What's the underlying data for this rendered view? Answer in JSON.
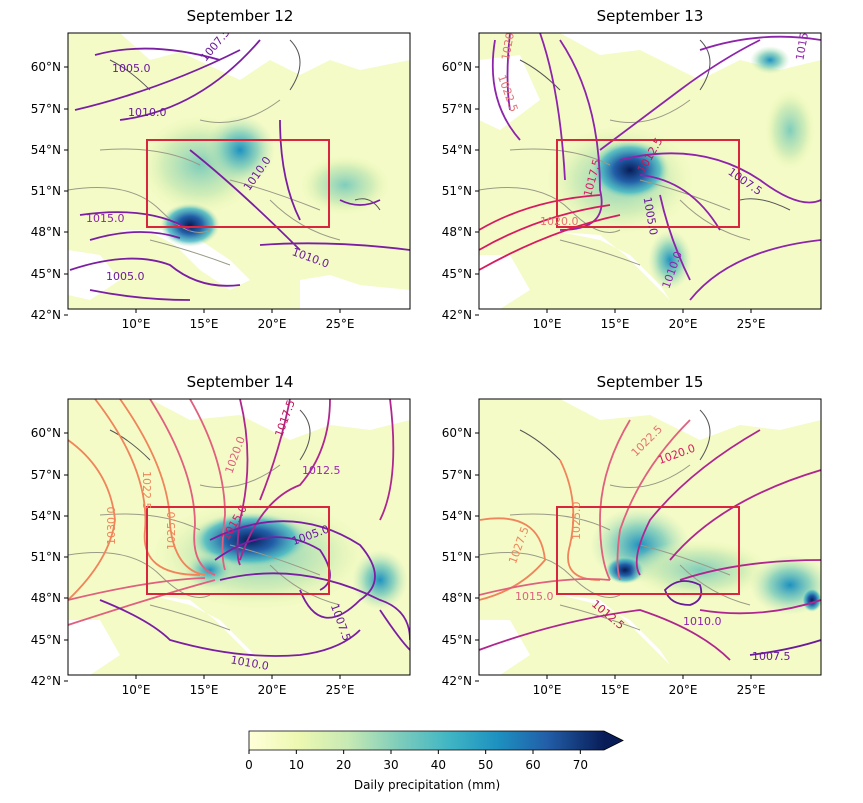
{
  "panels": [
    {
      "title": "September 12",
      "contour_labels": [
        "1005.0",
        "1007.5",
        "1010.0",
        "1010.0",
        "1015.0",
        "1010.0",
        "1005.0"
      ]
    },
    {
      "title": "September 13",
      "contour_labels": [
        "1020.0",
        "1022.5",
        "1015.0",
        "1012.5",
        "1017.5",
        "1007.5",
        "1005.0",
        "1020.0",
        "1010.0"
      ]
    },
    {
      "title": "September 14",
      "contour_labels": [
        "1017.5",
        "1017.5",
        "1020.0",
        "1022.5",
        "1012.5",
        "1030.0",
        "1025.0",
        "1015.0",
        "1005.0",
        "1007.5",
        "1010.0"
      ]
    },
    {
      "title": "September 15",
      "contour_labels": [
        "1022.5",
        "1020.0",
        "1027.5",
        "1025.0",
        "1015.0",
        "1012.5",
        "1010.0",
        "1007.5"
      ]
    }
  ],
  "axes": {
    "lat_ticks": [
      "60°N",
      "57°N",
      "54°N",
      "51°N",
      "48°N",
      "45°N",
      "42°N"
    ],
    "lon_ticks": [
      "10°E",
      "15°E",
      "20°E",
      "25°E"
    ]
  },
  "colorbar": {
    "label": "Daily precipitation (mm)",
    "ticks": [
      "0",
      "10",
      "20",
      "30",
      "40",
      "50",
      "60",
      "70"
    ],
    "colormap": "YlGnBu",
    "range": [
      0,
      75
    ],
    "extend": "max"
  },
  "colors": {
    "box": "#d7263d",
    "contour_low": "#6a1b9a",
    "contour_mid": "#c2307a",
    "contour_high": "#f0845a",
    "coastline": "#555555"
  }
}
